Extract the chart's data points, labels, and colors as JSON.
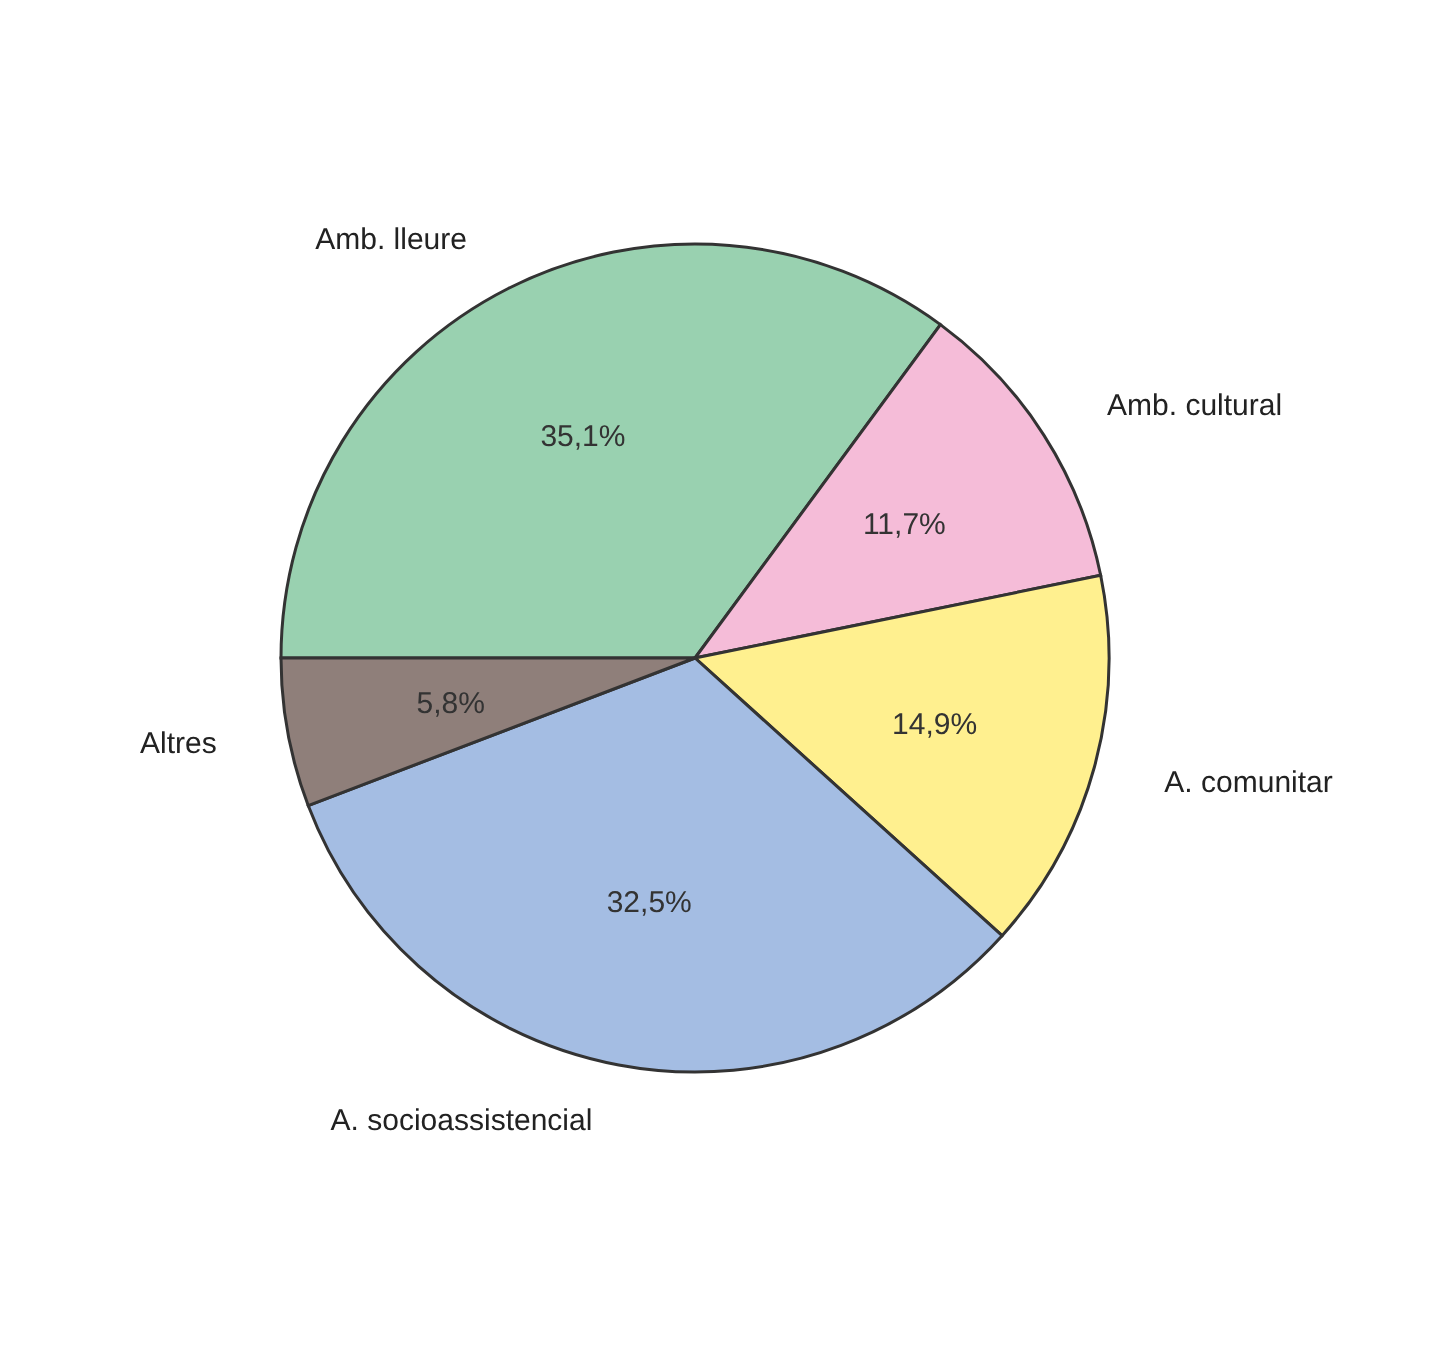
{
  "chart_data": {
    "type": "pie",
    "categories": [
      "Amb. lleure",
      "Amb. cultural",
      "A. comunitar",
      "A. socioassistencial",
      "Altres"
    ],
    "values": [
      35.1,
      11.7,
      14.9,
      32.5,
      5.8
    ],
    "colors": [
      "#99d1b0",
      "#f5bcd8",
      "#fff08f",
      "#a4bde3",
      "#8f7f7a"
    ],
    "value_labels": [
      "35,1%",
      "11,7%",
      "14,9%",
      "32,5%",
      "5,8%"
    ],
    "legend": false
  }
}
